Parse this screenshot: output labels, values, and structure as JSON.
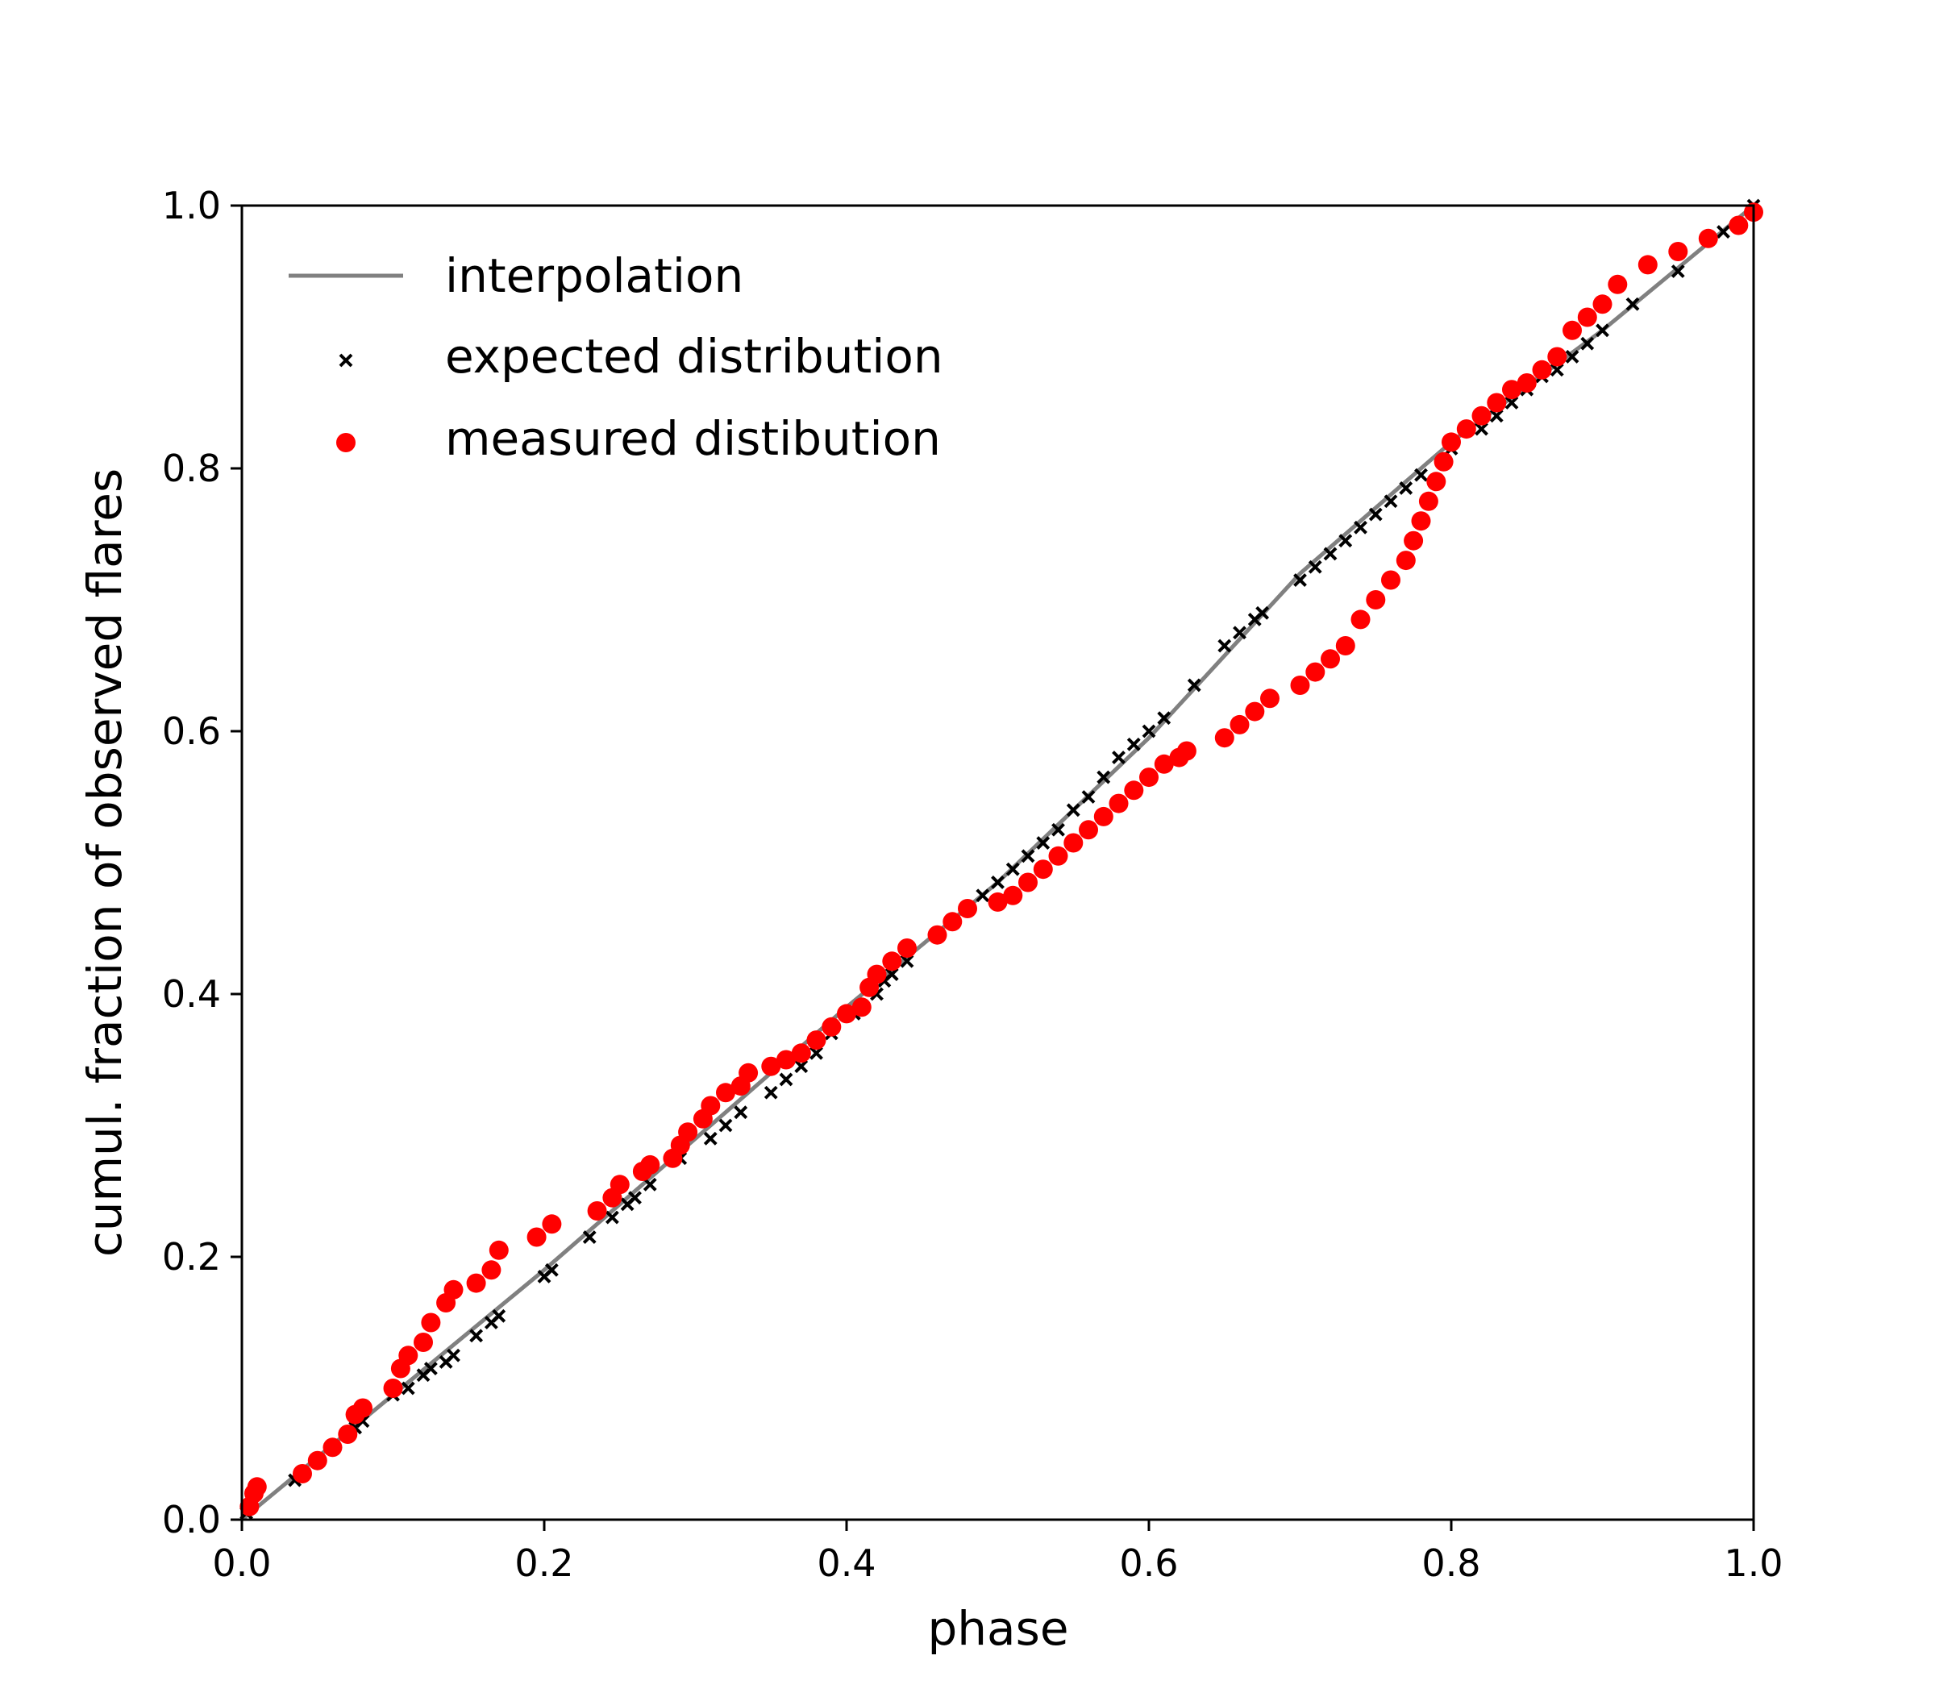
{
  "chart_data": {
    "type": "scatter",
    "title": "",
    "xlabel": "phase",
    "ylabel": "cumul. fraction of observed flares",
    "xlim": [
      0,
      1
    ],
    "ylim": [
      0,
      1
    ],
    "xticks": [
      "0.0",
      "0.2",
      "0.4",
      "0.6",
      "0.8",
      "1.0"
    ],
    "yticks": [
      "0.0",
      "0.2",
      "0.4",
      "0.6",
      "0.8",
      "1.0"
    ],
    "grid": false,
    "legend_position": "top-left",
    "colors": {
      "interpolation": "#808080",
      "expected": "#000000",
      "measured": "#ff0000"
    },
    "series": [
      {
        "name": "interpolation",
        "kind": "line",
        "points": [
          [
            0.0,
            0.0
          ],
          [
            0.2,
            0.19
          ],
          [
            0.4,
            0.39
          ],
          [
            0.5,
            0.485
          ],
          [
            0.6,
            0.595
          ],
          [
            0.7,
            0.72
          ],
          [
            0.8,
            0.82
          ],
          [
            0.9,
            0.905
          ],
          [
            1.0,
            1.0
          ]
        ]
      },
      {
        "name": "expected distribution",
        "kind": "marker-x",
        "points": [
          [
            0.003,
            0.005
          ],
          [
            0.035,
            0.03
          ],
          [
            0.06,
            0.055
          ],
          [
            0.075,
            0.07
          ],
          [
            0.08,
            0.075
          ],
          [
            0.1,
            0.095
          ],
          [
            0.11,
            0.1
          ],
          [
            0.12,
            0.11
          ],
          [
            0.125,
            0.115
          ],
          [
            0.135,
            0.12
          ],
          [
            0.14,
            0.125
          ],
          [
            0.155,
            0.14
          ],
          [
            0.165,
            0.15
          ],
          [
            0.17,
            0.155
          ],
          [
            0.2,
            0.185
          ],
          [
            0.205,
            0.19
          ],
          [
            0.23,
            0.215
          ],
          [
            0.245,
            0.23
          ],
          [
            0.255,
            0.24
          ],
          [
            0.26,
            0.245
          ],
          [
            0.27,
            0.255
          ],
          [
            0.29,
            0.275
          ],
          [
            0.31,
            0.29
          ],
          [
            0.32,
            0.3
          ],
          [
            0.33,
            0.31
          ],
          [
            0.35,
            0.325
          ],
          [
            0.36,
            0.335
          ],
          [
            0.37,
            0.345
          ],
          [
            0.38,
            0.355
          ],
          [
            0.39,
            0.37
          ],
          [
            0.405,
            0.385
          ],
          [
            0.42,
            0.4
          ],
          [
            0.425,
            0.41
          ],
          [
            0.43,
            0.415
          ],
          [
            0.44,
            0.425
          ],
          [
            0.47,
            0.455
          ],
          [
            0.49,
            0.475
          ],
          [
            0.5,
            0.485
          ],
          [
            0.51,
            0.495
          ],
          [
            0.52,
            0.505
          ],
          [
            0.53,
            0.515
          ],
          [
            0.54,
            0.525
          ],
          [
            0.55,
            0.54
          ],
          [
            0.56,
            0.55
          ],
          [
            0.57,
            0.565
          ],
          [
            0.58,
            0.58
          ],
          [
            0.59,
            0.59
          ],
          [
            0.6,
            0.6
          ],
          [
            0.61,
            0.61
          ],
          [
            0.63,
            0.635
          ],
          [
            0.65,
            0.665
          ],
          [
            0.66,
            0.675
          ],
          [
            0.67,
            0.685
          ],
          [
            0.675,
            0.69
          ],
          [
            0.7,
            0.715
          ],
          [
            0.71,
            0.725
          ],
          [
            0.72,
            0.735
          ],
          [
            0.73,
            0.745
          ],
          [
            0.74,
            0.755
          ],
          [
            0.75,
            0.765
          ],
          [
            0.76,
            0.775
          ],
          [
            0.77,
            0.785
          ],
          [
            0.78,
            0.795
          ],
          [
            0.8,
            0.815
          ],
          [
            0.82,
            0.83
          ],
          [
            0.83,
            0.84
          ],
          [
            0.84,
            0.85
          ],
          [
            0.85,
            0.86
          ],
          [
            0.86,
            0.87
          ],
          [
            0.87,
            0.875
          ],
          [
            0.88,
            0.885
          ],
          [
            0.89,
            0.895
          ],
          [
            0.9,
            0.905
          ],
          [
            0.92,
            0.925
          ],
          [
            0.95,
            0.95
          ],
          [
            0.98,
            0.98
          ],
          [
            1.0,
            1.0
          ]
        ]
      },
      {
        "name": "measured distibution",
        "kind": "marker-dot",
        "points": [
          [
            0.005,
            0.01
          ],
          [
            0.008,
            0.02
          ],
          [
            0.01,
            0.025
          ],
          [
            0.04,
            0.035
          ],
          [
            0.05,
            0.045
          ],
          [
            0.06,
            0.055
          ],
          [
            0.07,
            0.065
          ],
          [
            0.075,
            0.08
          ],
          [
            0.08,
            0.085
          ],
          [
            0.1,
            0.1
          ],
          [
            0.105,
            0.115
          ],
          [
            0.11,
            0.125
          ],
          [
            0.12,
            0.135
          ],
          [
            0.125,
            0.15
          ],
          [
            0.135,
            0.165
          ],
          [
            0.14,
            0.175
          ],
          [
            0.155,
            0.18
          ],
          [
            0.165,
            0.19
          ],
          [
            0.17,
            0.205
          ],
          [
            0.195,
            0.215
          ],
          [
            0.205,
            0.225
          ],
          [
            0.235,
            0.235
          ],
          [
            0.245,
            0.245
          ],
          [
            0.25,
            0.255
          ],
          [
            0.265,
            0.265
          ],
          [
            0.27,
            0.27
          ],
          [
            0.285,
            0.275
          ],
          [
            0.29,
            0.285
          ],
          [
            0.295,
            0.295
          ],
          [
            0.305,
            0.305
          ],
          [
            0.31,
            0.315
          ],
          [
            0.32,
            0.325
          ],
          [
            0.33,
            0.33
          ],
          [
            0.335,
            0.34
          ],
          [
            0.35,
            0.345
          ],
          [
            0.36,
            0.35
          ],
          [
            0.37,
            0.355
          ],
          [
            0.38,
            0.365
          ],
          [
            0.39,
            0.375
          ],
          [
            0.4,
            0.385
          ],
          [
            0.41,
            0.39
          ],
          [
            0.415,
            0.405
          ],
          [
            0.42,
            0.415
          ],
          [
            0.43,
            0.425
          ],
          [
            0.44,
            0.435
          ],
          [
            0.46,
            0.445
          ],
          [
            0.47,
            0.455
          ],
          [
            0.48,
            0.465
          ],
          [
            0.5,
            0.47
          ],
          [
            0.51,
            0.475
          ],
          [
            0.52,
            0.485
          ],
          [
            0.53,
            0.495
          ],
          [
            0.54,
            0.505
          ],
          [
            0.55,
            0.515
          ],
          [
            0.56,
            0.525
          ],
          [
            0.57,
            0.535
          ],
          [
            0.58,
            0.545
          ],
          [
            0.59,
            0.555
          ],
          [
            0.6,
            0.565
          ],
          [
            0.61,
            0.575
          ],
          [
            0.62,
            0.58
          ],
          [
            0.625,
            0.585
          ],
          [
            0.65,
            0.595
          ],
          [
            0.66,
            0.605
          ],
          [
            0.67,
            0.615
          ],
          [
            0.68,
            0.625
          ],
          [
            0.7,
            0.635
          ],
          [
            0.71,
            0.645
          ],
          [
            0.72,
            0.655
          ],
          [
            0.73,
            0.665
          ],
          [
            0.74,
            0.685
          ],
          [
            0.75,
            0.7
          ],
          [
            0.76,
            0.715
          ],
          [
            0.77,
            0.73
          ],
          [
            0.775,
            0.745
          ],
          [
            0.78,
            0.76
          ],
          [
            0.785,
            0.775
          ],
          [
            0.79,
            0.79
          ],
          [
            0.795,
            0.805
          ],
          [
            0.8,
            0.82
          ],
          [
            0.81,
            0.83
          ],
          [
            0.82,
            0.84
          ],
          [
            0.83,
            0.85
          ],
          [
            0.84,
            0.86
          ],
          [
            0.85,
            0.865
          ],
          [
            0.86,
            0.875
          ],
          [
            0.87,
            0.885
          ],
          [
            0.88,
            0.905
          ],
          [
            0.89,
            0.915
          ],
          [
            0.9,
            0.925
          ],
          [
            0.91,
            0.94
          ],
          [
            0.93,
            0.955
          ],
          [
            0.95,
            0.965
          ],
          [
            0.97,
            0.975
          ],
          [
            0.99,
            0.985
          ],
          [
            1.0,
            0.995
          ]
        ]
      }
    ]
  }
}
